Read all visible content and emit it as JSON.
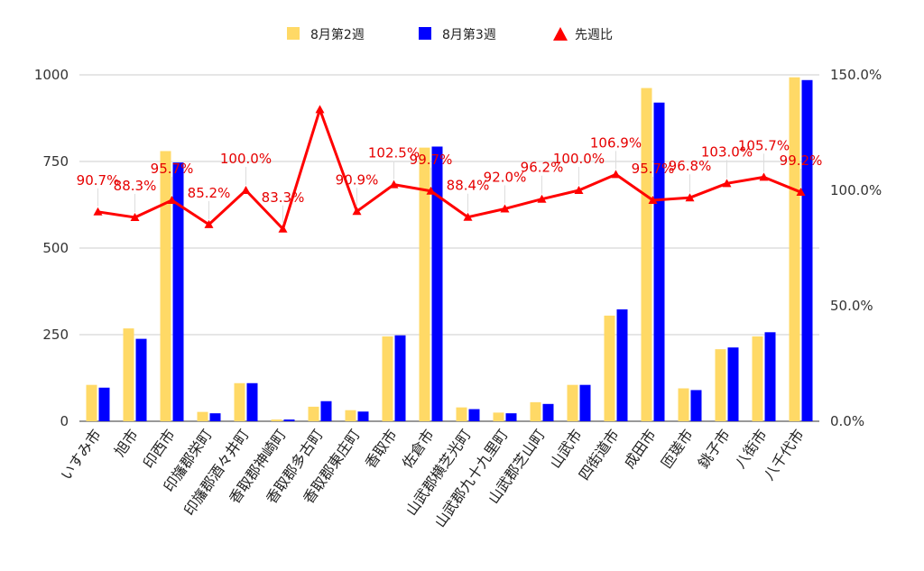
{
  "chart_data": {
    "type": "bar",
    "categories": [
      "いすみ市",
      "旭市",
      "印西市",
      "印旛郡栄町",
      "印旛郡酒々井町",
      "香取郡神崎町",
      "香取郡多古町",
      "香取郡東庄町",
      "香取市",
      "佐倉市",
      "山武郡横芝光町",
      "山武郡九十九里町",
      "山武郡芝山町",
      "山武市",
      "四街道市",
      "成田市",
      "匝瑳市",
      "銚子市",
      "八街市",
      "八千代市"
    ],
    "series": [
      {
        "name": "8月第2週",
        "color": "#ffd966",
        "values": [
          105,
          268,
          780,
          27,
          110,
          5,
          42,
          32,
          245,
          790,
          40,
          25,
          55,
          105,
          305,
          962,
          95,
          208,
          245,
          993
        ]
      },
      {
        "name": "8月第3週",
        "color": "#0000ff",
        "values": [
          97,
          238,
          747,
          23,
          110,
          5,
          58,
          28,
          248,
          793,
          35,
          23,
          50,
          105,
          323,
          920,
          90,
          213,
          257,
          985
        ]
      }
    ],
    "line_series": {
      "name": "先週比",
      "color": "#ff0000",
      "values": [
        90.7,
        88.3,
        95.7,
        85.2,
        100.0,
        83.3,
        135.0,
        90.9,
        102.5,
        99.7,
        88.4,
        92.0,
        96.2,
        100.0,
        106.9,
        95.7,
        96.8,
        103.0,
        105.7,
        99.2
      ],
      "labels": [
        "90.7%",
        "88.3%",
        "95.7%",
        "85.2%",
        "100.0%",
        "83.3%",
        "",
        "90.9%",
        "102.5%",
        "99.7%",
        "88.4%",
        "92.0%",
        "96.2%",
        "100.0%",
        "106.9%",
        "95.7%",
        "96.8%",
        "103.0%",
        "105.7%",
        "99.2%"
      ]
    },
    "y_left": {
      "min": 0,
      "max": 1000,
      "ticks": [
        "0",
        "250",
        "500",
        "750",
        "1000"
      ]
    },
    "y_right": {
      "min": 0,
      "max": 150,
      "ticks": [
        "0.0%",
        "50.0%",
        "100.0%",
        "150.0%"
      ]
    },
    "grid": true,
    "legend_position": "top"
  }
}
